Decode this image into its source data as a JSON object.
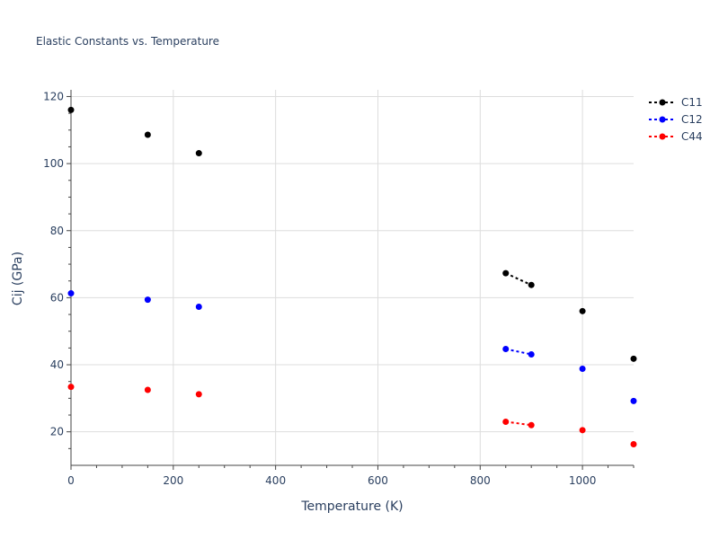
{
  "chart_data": {
    "type": "scatter",
    "title": "Elastic Constants vs. Temperature",
    "xlabel": "Temperature (K)",
    "ylabel": "Cij (GPa)",
    "xlim": [
      0,
      1100
    ],
    "ylim": [
      10,
      122
    ],
    "x_ticks": [
      0,
      200,
      400,
      600,
      800,
      1000
    ],
    "y_ticks": [
      20,
      40,
      60,
      80,
      100,
      120
    ],
    "grid": true,
    "legend_position": "top-right",
    "series": [
      {
        "name": "C11",
        "color": "#000000",
        "points": [
          [
            0,
            116
          ],
          [
            150,
            108.6
          ],
          [
            250,
            103.1
          ],
          [
            850,
            67.3
          ],
          [
            900,
            63.8
          ],
          [
            1000,
            56.0
          ],
          [
            1100,
            41.8
          ]
        ]
      },
      {
        "name": "C12",
        "color": "#0000ff",
        "points": [
          [
            0,
            61.3
          ],
          [
            150,
            59.4
          ],
          [
            250,
            57.3
          ],
          [
            850,
            44.7
          ],
          [
            900,
            43.1
          ],
          [
            1000,
            38.8
          ],
          [
            1100,
            29.2
          ]
        ]
      },
      {
        "name": "C44",
        "color": "#ff0000",
        "points": [
          [
            0,
            33.4
          ],
          [
            150,
            32.5
          ],
          [
            250,
            31.2
          ],
          [
            850,
            23.0
          ],
          [
            900,
            22.0
          ],
          [
            1000,
            20.5
          ],
          [
            1100,
            16.3
          ]
        ]
      }
    ],
    "line_segments_x": [
      850,
      900
    ]
  }
}
